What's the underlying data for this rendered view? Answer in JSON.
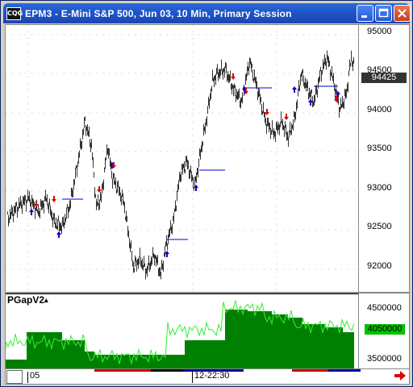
{
  "window": {
    "title": "EPM3 - E-Mini S&P 500, Jun 03, 10 Min, Primary Session",
    "app_icon_text": "CQG",
    "controls": [
      "minimize-icon",
      "maximize-icon",
      "close-icon"
    ]
  },
  "price_axis": {
    "ticks": [
      "95000",
      "94500",
      "94000",
      "93500",
      "93000",
      "92500",
      "92000"
    ],
    "last_price": "94425"
  },
  "indicator": {
    "name": "PGapV2",
    "suffix": "▴",
    "ticks": [
      "4500000",
      "3500000"
    ],
    "last_value": "4050000"
  },
  "time_axis": {
    "labels": [
      "05",
      "12-22:30"
    ]
  },
  "colors": {
    "candles": "#333333",
    "up_arrow": "#0000cc",
    "down_arrow": "#dd0000",
    "gap_line": "#0000cc",
    "histogram": "#008000",
    "indicator_line": "#33ee33",
    "title_bar": "#1e54c8"
  },
  "icons": {
    "scroll_right": "right-arrow-icon"
  }
}
